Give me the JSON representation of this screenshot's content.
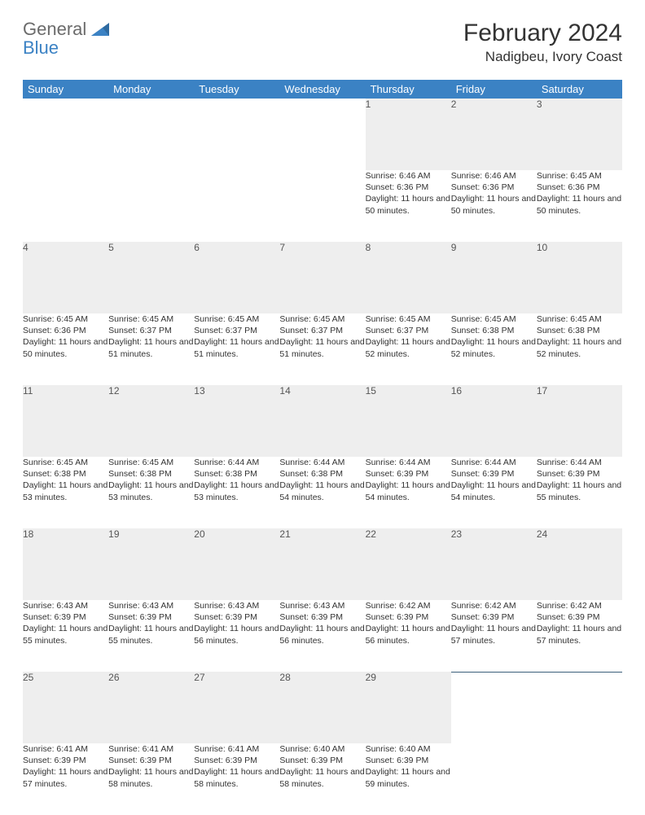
{
  "logo": {
    "general": "General",
    "blue": "Blue"
  },
  "title": "February 2024",
  "location": "Nadigbeu, Ivory Coast",
  "colors": {
    "header_bg": "#3b82c4",
    "header_text": "#ffffff",
    "daynum_bg": "#eeeeee",
    "row_divider": "#3b5f7a",
    "text": "#333333",
    "logo_gray": "#6b6b6b",
    "logo_blue": "#3b82c4"
  },
  "weekdays": [
    "Sunday",
    "Monday",
    "Tuesday",
    "Wednesday",
    "Thursday",
    "Friday",
    "Saturday"
  ],
  "weeks": [
    [
      null,
      null,
      null,
      null,
      {
        "n": "1",
        "sr": "6:46 AM",
        "ss": "6:36 PM",
        "dl": "11 hours and 50 minutes."
      },
      {
        "n": "2",
        "sr": "6:46 AM",
        "ss": "6:36 PM",
        "dl": "11 hours and 50 minutes."
      },
      {
        "n": "3",
        "sr": "6:45 AM",
        "ss": "6:36 PM",
        "dl": "11 hours and 50 minutes."
      }
    ],
    [
      {
        "n": "4",
        "sr": "6:45 AM",
        "ss": "6:36 PM",
        "dl": "11 hours and 50 minutes."
      },
      {
        "n": "5",
        "sr": "6:45 AM",
        "ss": "6:37 PM",
        "dl": "11 hours and 51 minutes."
      },
      {
        "n": "6",
        "sr": "6:45 AM",
        "ss": "6:37 PM",
        "dl": "11 hours and 51 minutes."
      },
      {
        "n": "7",
        "sr": "6:45 AM",
        "ss": "6:37 PM",
        "dl": "11 hours and 51 minutes."
      },
      {
        "n": "8",
        "sr": "6:45 AM",
        "ss": "6:37 PM",
        "dl": "11 hours and 52 minutes."
      },
      {
        "n": "9",
        "sr": "6:45 AM",
        "ss": "6:38 PM",
        "dl": "11 hours and 52 minutes."
      },
      {
        "n": "10",
        "sr": "6:45 AM",
        "ss": "6:38 PM",
        "dl": "11 hours and 52 minutes."
      }
    ],
    [
      {
        "n": "11",
        "sr": "6:45 AM",
        "ss": "6:38 PM",
        "dl": "11 hours and 53 minutes."
      },
      {
        "n": "12",
        "sr": "6:45 AM",
        "ss": "6:38 PM",
        "dl": "11 hours and 53 minutes."
      },
      {
        "n": "13",
        "sr": "6:44 AM",
        "ss": "6:38 PM",
        "dl": "11 hours and 53 minutes."
      },
      {
        "n": "14",
        "sr": "6:44 AM",
        "ss": "6:38 PM",
        "dl": "11 hours and 54 minutes."
      },
      {
        "n": "15",
        "sr": "6:44 AM",
        "ss": "6:39 PM",
        "dl": "11 hours and 54 minutes."
      },
      {
        "n": "16",
        "sr": "6:44 AM",
        "ss": "6:39 PM",
        "dl": "11 hours and 54 minutes."
      },
      {
        "n": "17",
        "sr": "6:44 AM",
        "ss": "6:39 PM",
        "dl": "11 hours and 55 minutes."
      }
    ],
    [
      {
        "n": "18",
        "sr": "6:43 AM",
        "ss": "6:39 PM",
        "dl": "11 hours and 55 minutes."
      },
      {
        "n": "19",
        "sr": "6:43 AM",
        "ss": "6:39 PM",
        "dl": "11 hours and 55 minutes."
      },
      {
        "n": "20",
        "sr": "6:43 AM",
        "ss": "6:39 PM",
        "dl": "11 hours and 56 minutes."
      },
      {
        "n": "21",
        "sr": "6:43 AM",
        "ss": "6:39 PM",
        "dl": "11 hours and 56 minutes."
      },
      {
        "n": "22",
        "sr": "6:42 AM",
        "ss": "6:39 PM",
        "dl": "11 hours and 56 minutes."
      },
      {
        "n": "23",
        "sr": "6:42 AM",
        "ss": "6:39 PM",
        "dl": "11 hours and 57 minutes."
      },
      {
        "n": "24",
        "sr": "6:42 AM",
        "ss": "6:39 PM",
        "dl": "11 hours and 57 minutes."
      }
    ],
    [
      {
        "n": "25",
        "sr": "6:41 AM",
        "ss": "6:39 PM",
        "dl": "11 hours and 57 minutes."
      },
      {
        "n": "26",
        "sr": "6:41 AM",
        "ss": "6:39 PM",
        "dl": "11 hours and 58 minutes."
      },
      {
        "n": "27",
        "sr": "6:41 AM",
        "ss": "6:39 PM",
        "dl": "11 hours and 58 minutes."
      },
      {
        "n": "28",
        "sr": "6:40 AM",
        "ss": "6:39 PM",
        "dl": "11 hours and 58 minutes."
      },
      {
        "n": "29",
        "sr": "6:40 AM",
        "ss": "6:39 PM",
        "dl": "11 hours and 59 minutes."
      },
      null,
      null
    ]
  ],
  "labels": {
    "sunrise": "Sunrise:",
    "sunset": "Sunset:",
    "daylight": "Daylight:"
  }
}
